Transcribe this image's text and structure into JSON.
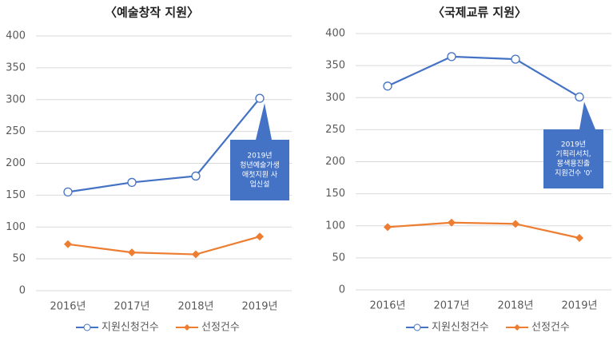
{
  "chart_data": [
    {
      "type": "line",
      "title": "〈예술창작 지원〉",
      "categories": [
        "2016년",
        "2017년",
        "2018년",
        "2019년"
      ],
      "series": [
        {
          "name": "지원신청건수",
          "color": "#4472c4",
          "marker": "circle",
          "values": [
            155,
            170,
            180,
            302
          ]
        },
        {
          "name": "선정건수",
          "color": "#ed7d31",
          "marker": "diamond",
          "values": [
            73,
            60,
            57,
            85
          ]
        }
      ],
      "ylim": [
        0,
        400
      ],
      "yticks": [
        0,
        50,
        100,
        150,
        200,
        250,
        300,
        350,
        400
      ],
      "grid": true,
      "legend": "bottom",
      "annotation": {
        "lines": [
          "2019년",
          "청년예술가생",
          "애첫지원 사",
          "업신설"
        ],
        "color": "#4472c4"
      }
    },
    {
      "type": "line",
      "title": "〈국제교류 지원〉",
      "categories": [
        "2016년",
        "2017년",
        "2018년",
        "2019년"
      ],
      "series": [
        {
          "name": "지원신청건수",
          "color": "#4472c4",
          "marker": "circle",
          "values": [
            318,
            364,
            360,
            301
          ]
        },
        {
          "name": "선정건수",
          "color": "#ed7d31",
          "marker": "diamond",
          "values": [
            98,
            105,
            103,
            81
          ]
        }
      ],
      "ylim": [
        0,
        400
      ],
      "yticks": [
        0,
        50,
        100,
        150,
        200,
        250,
        300,
        350,
        400
      ],
      "grid": true,
      "legend": "bottom",
      "annotation": {
        "lines": [
          "2019년",
          "기획리서치,",
          "몽색용진출",
          "지원건수 '0'"
        ],
        "color": "#4472c4"
      }
    }
  ]
}
